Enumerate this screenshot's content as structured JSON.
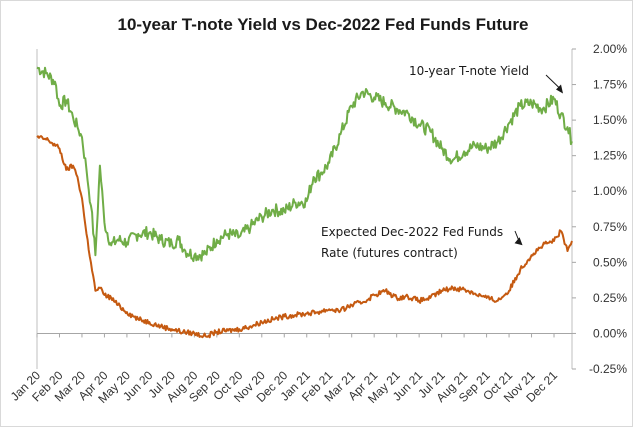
{
  "chart_data": {
    "type": "line",
    "title": "10-year T-note Yield vs Dec-2022 Fed Funds Future",
    "xlabel": "",
    "ylabel": "",
    "y_axis_side": "right",
    "ylim": [
      -0.25,
      2.0
    ],
    "y_ticks": [
      "-0.25%",
      "0.00%",
      "0.25%",
      "0.50%",
      "0.75%",
      "1.00%",
      "1.25%",
      "1.50%",
      "1.75%",
      "2.00%"
    ],
    "y_tick_values": [
      -0.25,
      0,
      0.25,
      0.5,
      0.75,
      1.0,
      1.25,
      1.5,
      1.75,
      2.0
    ],
    "x_range_months": [
      0,
      23.8
    ],
    "x_ticks": [
      "Jan 20",
      "Feb 20",
      "Mar 20",
      "Apr 20",
      "May 20",
      "Jun 20",
      "Jul 20",
      "Aug 20",
      "Sep 20",
      "Oct 20",
      "Nov 20",
      "Dec 20",
      "Jan 21",
      "Feb 21",
      "Mar 21",
      "Apr 21",
      "May 21",
      "Jun 21",
      "Jul 21",
      "Aug 21",
      "Sep 21",
      "Oct 21",
      "Nov 21",
      "Dec 21"
    ],
    "grid": false,
    "series": [
      {
        "name": "10-year T-note Yield",
        "color": "#70ad47",
        "x": [
          0,
          0.4,
          0.8,
          1.0,
          1.3,
          1.6,
          1.8,
          2.0,
          2.2,
          2.4,
          2.6,
          2.8,
          3.0,
          3.3,
          3.6,
          4.0,
          4.5,
          5.0,
          5.5,
          6.0,
          6.3,
          6.6,
          7.0,
          7.5,
          8.0,
          8.5,
          9.0,
          9.5,
          10.0,
          10.5,
          11.0,
          11.5,
          12.0,
          12.3,
          12.6,
          13.0,
          13.5,
          14.0,
          14.5,
          15.0,
          15.5,
          16.0,
          16.5,
          17.0,
          17.5,
          18.0,
          18.5,
          19.0,
          19.5,
          20.0,
          20.5,
          21.0,
          21.5,
          22.0,
          22.5,
          23.0,
          23.3,
          23.6,
          23.8
        ],
        "values": [
          1.87,
          1.83,
          1.77,
          1.6,
          1.64,
          1.52,
          1.45,
          1.38,
          1.15,
          0.9,
          0.55,
          1.18,
          0.78,
          0.62,
          0.66,
          0.64,
          0.7,
          0.71,
          0.66,
          0.63,
          0.66,
          0.58,
          0.55,
          0.56,
          0.66,
          0.7,
          0.68,
          0.75,
          0.82,
          0.87,
          0.86,
          0.92,
          0.93,
          1.1,
          1.12,
          1.2,
          1.4,
          1.6,
          1.7,
          1.66,
          1.62,
          1.58,
          1.55,
          1.47,
          1.42,
          1.3,
          1.22,
          1.28,
          1.32,
          1.3,
          1.35,
          1.48,
          1.6,
          1.62,
          1.58,
          1.65,
          1.54,
          1.45,
          1.35
        ]
      },
      {
        "name": "Expected Dec-2022 Fed Funds Rate (futures contract)",
        "color": "#c55a11",
        "x": [
          0,
          0.5,
          1.0,
          1.3,
          1.6,
          1.8,
          2.0,
          2.2,
          2.4,
          2.6,
          2.8,
          3.0,
          3.3,
          3.6,
          4.0,
          4.5,
          5.0,
          5.5,
          6.0,
          6.5,
          7.0,
          7.5,
          8.0,
          8.5,
          9.0,
          9.5,
          10.0,
          10.5,
          11.0,
          11.5,
          12.0,
          12.5,
          13.0,
          13.5,
          14.0,
          14.5,
          15.0,
          15.5,
          16.0,
          16.5,
          17.0,
          17.5,
          18.0,
          18.5,
          19.0,
          19.5,
          20.0,
          20.5,
          21.0,
          21.5,
          22.0,
          22.5,
          23.0,
          23.3,
          23.6,
          23.8
        ],
        "values": [
          1.38,
          1.36,
          1.3,
          1.15,
          1.18,
          1.1,
          0.95,
          0.7,
          0.5,
          0.3,
          0.32,
          0.27,
          0.25,
          0.2,
          0.15,
          0.1,
          0.08,
          0.05,
          0.03,
          0.01,
          0.0,
          -0.02,
          0.01,
          0.02,
          0.03,
          0.05,
          0.08,
          0.1,
          0.12,
          0.13,
          0.14,
          0.15,
          0.17,
          0.16,
          0.2,
          0.22,
          0.27,
          0.3,
          0.25,
          0.26,
          0.23,
          0.25,
          0.3,
          0.32,
          0.31,
          0.28,
          0.25,
          0.23,
          0.3,
          0.45,
          0.55,
          0.62,
          0.65,
          0.72,
          0.58,
          0.65
        ]
      }
    ],
    "annotations": [
      {
        "text": "10-year T-note Yield",
        "series": "10-year T-note Yield",
        "anchor_x": 23.4,
        "anchor_y": 1.68
      },
      {
        "text": "Expected Dec-2022 Fed Funds",
        "text2": "Rate (futures contract)",
        "series": "Expected Dec-2022 Fed Funds Rate (futures contract)",
        "anchor_x": 21.6,
        "anchor_y": 0.62
      }
    ]
  }
}
